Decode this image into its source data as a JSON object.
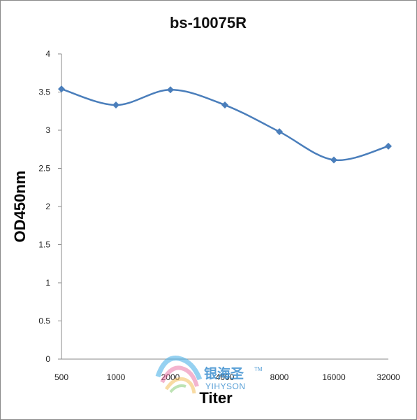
{
  "chart_data": {
    "type": "line",
    "title": "bs-10075R",
    "xlabel": "Titer",
    "ylabel": "OD450nm",
    "categories": [
      "500",
      "1000",
      "2000",
      "4000",
      "8000",
      "16000",
      "32000"
    ],
    "series": [
      {
        "values": [
          3.54,
          3.33,
          3.53,
          3.33,
          2.98,
          2.61,
          2.79
        ],
        "color": "#4a7ebb"
      }
    ],
    "ylim": [
      0,
      4
    ],
    "yticks": [
      "0",
      "0.5",
      "1",
      "1.5",
      "2",
      "2.5",
      "3",
      "3.5",
      "4"
    ],
    "grid": false,
    "legend": "none"
  },
  "watermark": {
    "chinese": "银海圣",
    "english": "YIHYSON",
    "tm": "TM"
  }
}
